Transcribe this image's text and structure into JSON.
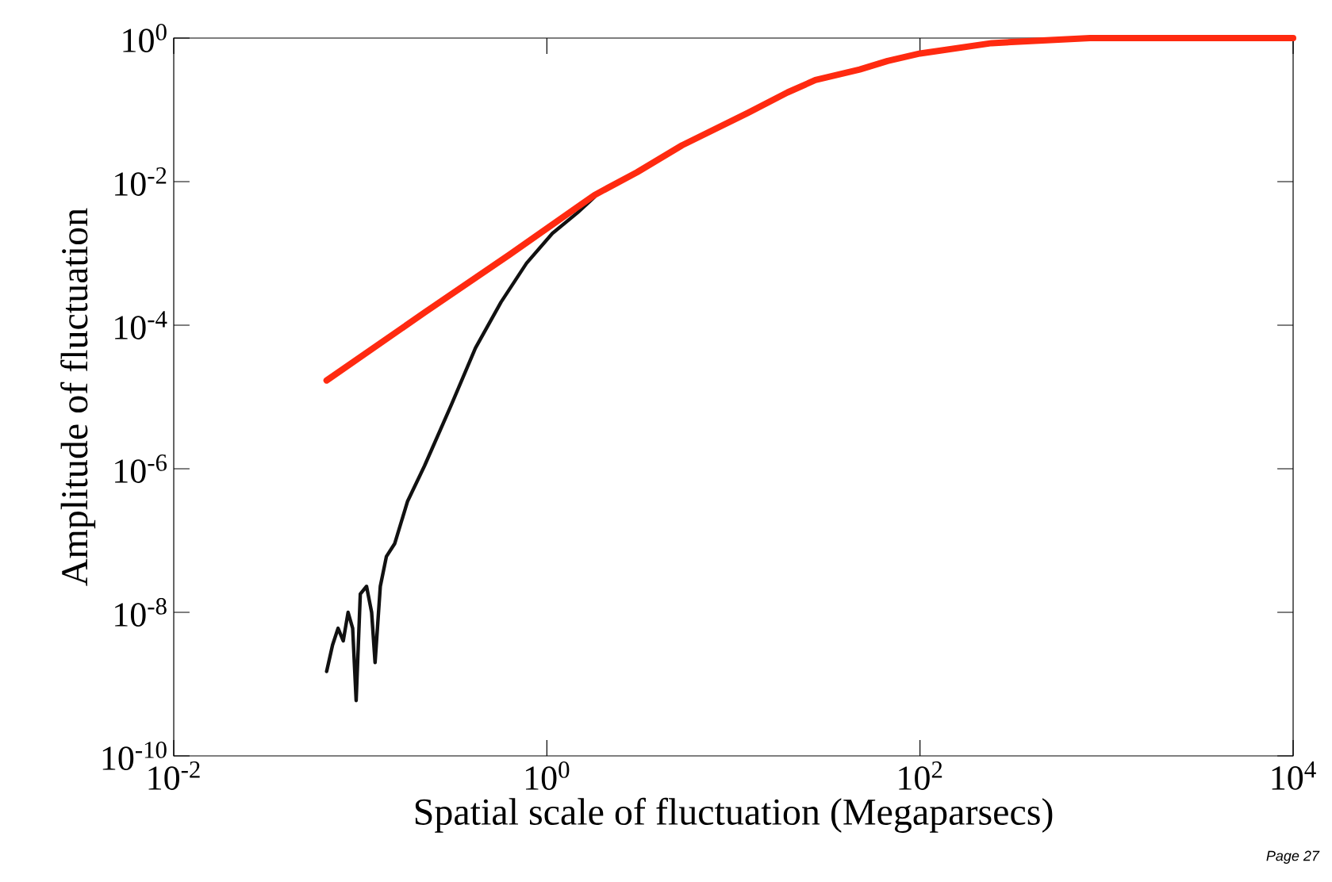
{
  "chart_data": {
    "type": "line",
    "xlabel": "Spatial scale of fluctuation (Megaparsecs)",
    "ylabel": "Amplitude of fluctuation",
    "log": "xy",
    "grid": false,
    "xlim": [
      0.01,
      10000
    ],
    "ylim": [
      1e-10,
      1
    ],
    "xticks": [
      {
        "value": 0.01,
        "label": "10$^{-2}$"
      },
      {
        "value": 1,
        "label": "10$^{0}$"
      },
      {
        "value": 100,
        "label": "10$^{2}$"
      },
      {
        "value": 10000,
        "label": "10$^{4}$"
      }
    ],
    "yticks": [
      {
        "value": 1e-10,
        "label": "10$^{-10}$"
      },
      {
        "value": 1e-08,
        "label": "10$^{-8}$"
      },
      {
        "value": 1e-06,
        "label": "10$^{-6}$"
      },
      {
        "value": 0.0001,
        "label": "10$^{-4}$"
      },
      {
        "value": 0.01,
        "label": "10$^{-2}$"
      },
      {
        "value": 1,
        "label": "10$^{0}$"
      }
    ],
    "series": [
      {
        "color": "#111111",
        "x": [
          0.066,
          0.071,
          0.076,
          0.081,
          0.086,
          0.091,
          0.095,
          0.1,
          0.108,
          0.115,
          0.12,
          0.128,
          0.138,
          0.153,
          0.179,
          0.221,
          0.303,
          0.414,
          0.568,
          0.778,
          1.07,
          1.46,
          1.8
        ],
        "values": [
          1.5e-09,
          3.5e-09,
          6e-09,
          4e-09,
          1e-08,
          6e-09,
          5.9e-10,
          1.8e-08,
          2.3e-08,
          1e-08,
          2e-09,
          2.3e-08,
          6e-08,
          9.1e-08,
          3.5e-07,
          1.1e-06,
          7.1e-06,
          4.8e-05,
          0.00021,
          0.00073,
          0.0019,
          0.0037,
          0.0061
        ]
      },
      {
        "color": "#ff2a10",
        "x": [
          0.066,
          0.221,
          0.63,
          1.8,
          3.04,
          5.3,
          12,
          19.5,
          27.5,
          47.5,
          67,
          100,
          242,
          815,
          10000
        ],
        "values": [
          1.7e-05,
          0.00015,
          0.00096,
          0.0065,
          0.0135,
          0.032,
          0.091,
          0.175,
          0.26,
          0.365,
          0.48,
          0.61,
          0.85,
          1,
          1
        ]
      }
    ],
    "annotations": [
      "Page 27"
    ]
  }
}
